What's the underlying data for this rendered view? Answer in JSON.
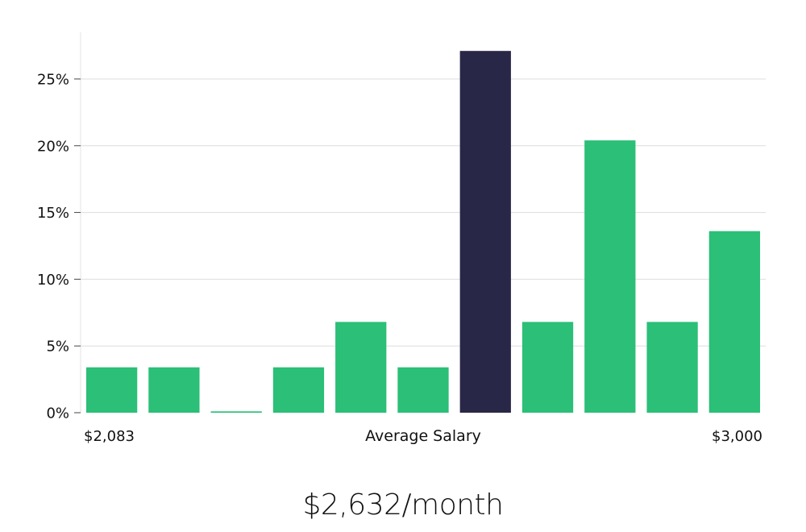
{
  "chart_data": {
    "type": "bar",
    "title": "",
    "xlabel": "Average Salary",
    "ylabel": "",
    "x_range_labels": {
      "min": "$2,083",
      "max": "$3,000"
    },
    "ylim": [
      0,
      28.5
    ],
    "yticks": [
      0,
      5,
      10,
      15,
      20,
      25
    ],
    "ytick_labels": [
      "0%",
      "5%",
      "10%",
      "15%",
      "20%",
      "25%"
    ],
    "grid": true,
    "values": [
      3.4,
      3.4,
      0.1,
      3.4,
      6.8,
      3.4,
      27.1,
      6.8,
      20.4,
      6.8,
      13.6
    ],
    "highlight_index": 6,
    "colors": {
      "bar": "#2bbf77",
      "highlight": "#292747",
      "grid": "#dddddd",
      "axis": "#e3e3e3"
    }
  },
  "summary": {
    "average_label": "$2,632/month"
  }
}
